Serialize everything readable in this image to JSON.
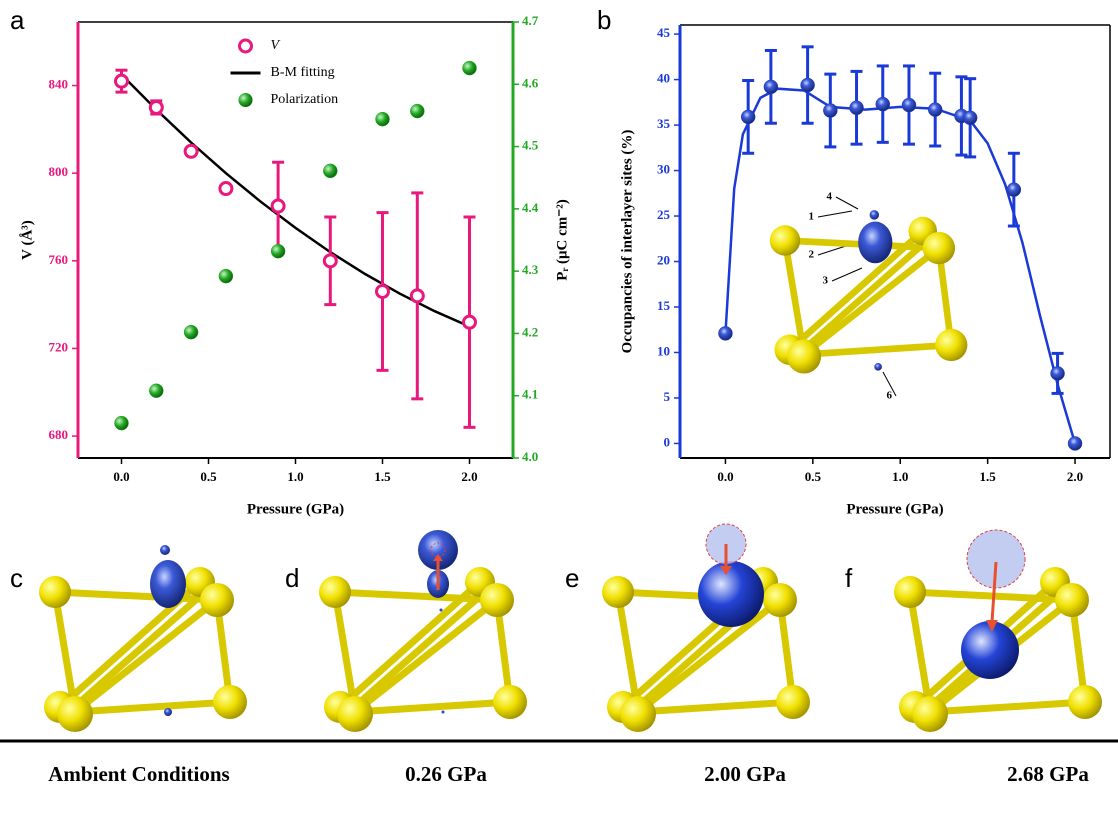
{
  "chart_data": [
    {
      "type": "scatter",
      "xlabel": "Pressure (GPa)",
      "ylabel": "V (Å³)",
      "y2label": "Pᵣ (μC cm⁻²)",
      "xlim": [
        -0.25,
        2.25
      ],
      "ylim": [
        670,
        869
      ],
      "y2lim": [
        4.0,
        4.7
      ],
      "xticks": [
        {
          "value": 0,
          "label": "0.0"
        },
        0.5,
        {
          "value": 1,
          "label": "1.0"
        },
        1.5,
        {
          "value": 2,
          "label": "2.0"
        }
      ],
      "yticks": [
        680,
        720,
        760,
        800,
        840
      ],
      "y2ticks": [
        {
          "value": 4,
          "label": "4.0"
        },
        4.1,
        4.2,
        4.3,
        4.4,
        4.5,
        4.6,
        4.7
      ],
      "legend": "upper center",
      "series": [
        {
          "name": "V",
          "mode": "hollow",
          "color": "#e8187c",
          "x": [
            0,
            0.2,
            0.4,
            0.6,
            0.9,
            1.2,
            1.5,
            1.7,
            2.0
          ],
          "values": [
            842,
            830,
            810,
            793,
            785,
            760,
            746,
            744,
            732
          ],
          "error": [
            5,
            3,
            0,
            0,
            20,
            20,
            36,
            47,
            48
          ]
        },
        {
          "name": "B-M fitting",
          "mode": "line",
          "color": "#000000",
          "x": [
            0,
            0.2,
            0.4,
            0.6,
            0.8,
            1.0,
            1.2,
            1.4,
            1.6,
            1.8,
            2.0
          ],
          "values": [
            845,
            829,
            814,
            800,
            787,
            775,
            764,
            754,
            745,
            737,
            730
          ]
        },
        {
          "name": "Polarization",
          "mode": "filled",
          "color": "#22a822",
          "axis": "y2",
          "x": [
            0,
            0.2,
            0.4,
            0.6,
            0.9,
            1.2,
            1.5,
            1.7,
            2.0
          ],
          "values": [
            4.056,
            4.108,
            4.202,
            4.292,
            4.332,
            4.461,
            4.544,
            4.557,
            4.626
          ]
        }
      ]
    },
    {
      "type": "scatter",
      "xlabel": "Pressure (GPa)",
      "ylabel": "Occupancies of interlayer sites (%)",
      "xlim": [
        -0.26,
        2.2
      ],
      "ylim": [
        -1.6,
        46
      ],
      "xticks": [
        {
          "value": 0,
          "label": "0.0"
        },
        0.5,
        {
          "value": 1,
          "label": "1.0"
        },
        1.5,
        {
          "value": 2,
          "label": "2.0"
        }
      ],
      "yticks": [
        0,
        5,
        10,
        15,
        20,
        25,
        30,
        35,
        40,
        45
      ],
      "annotations": [
        "4",
        "1",
        "2",
        "3",
        "6"
      ],
      "series": [
        {
          "mode": "filled",
          "color": "#1a3ad8",
          "x": [
            0,
            0.13,
            0.26,
            0.47,
            0.6,
            0.75,
            0.9,
            1.05,
            1.2,
            1.35,
            1.4,
            1.65,
            1.9,
            2.0
          ],
          "values": [
            12.1,
            35.9,
            39.2,
            39.4,
            36.6,
            36.9,
            37.3,
            37.2,
            36.7,
            36.0,
            35.8,
            27.9,
            7.7,
            0
          ],
          "error": [
            0,
            4,
            4,
            4.2,
            4,
            4,
            4.2,
            4.3,
            4,
            4.3,
            4.3,
            4,
            2.2,
            0
          ]
        },
        {
          "mode": "line",
          "color": "#1a3ad8",
          "x": [
            0,
            0.05,
            0.1,
            0.2,
            0.3,
            0.45,
            0.6,
            0.8,
            1.0,
            1.2,
            1.4,
            1.5,
            1.6,
            1.7,
            1.8,
            1.9,
            2.0
          ],
          "values": [
            12,
            28,
            34,
            38,
            39,
            38.8,
            37,
            36.7,
            37,
            36.8,
            35.5,
            33,
            28.5,
            22,
            14,
            6.5,
            0
          ]
        }
      ]
    }
  ],
  "panels": {
    "labels": [
      "a",
      "b",
      "c",
      "d",
      "e",
      "f"
    ],
    "captions": [
      "Ambient Conditions",
      "0.26 GPa",
      "2.00 GPa",
      "2.68 GPa"
    ]
  }
}
